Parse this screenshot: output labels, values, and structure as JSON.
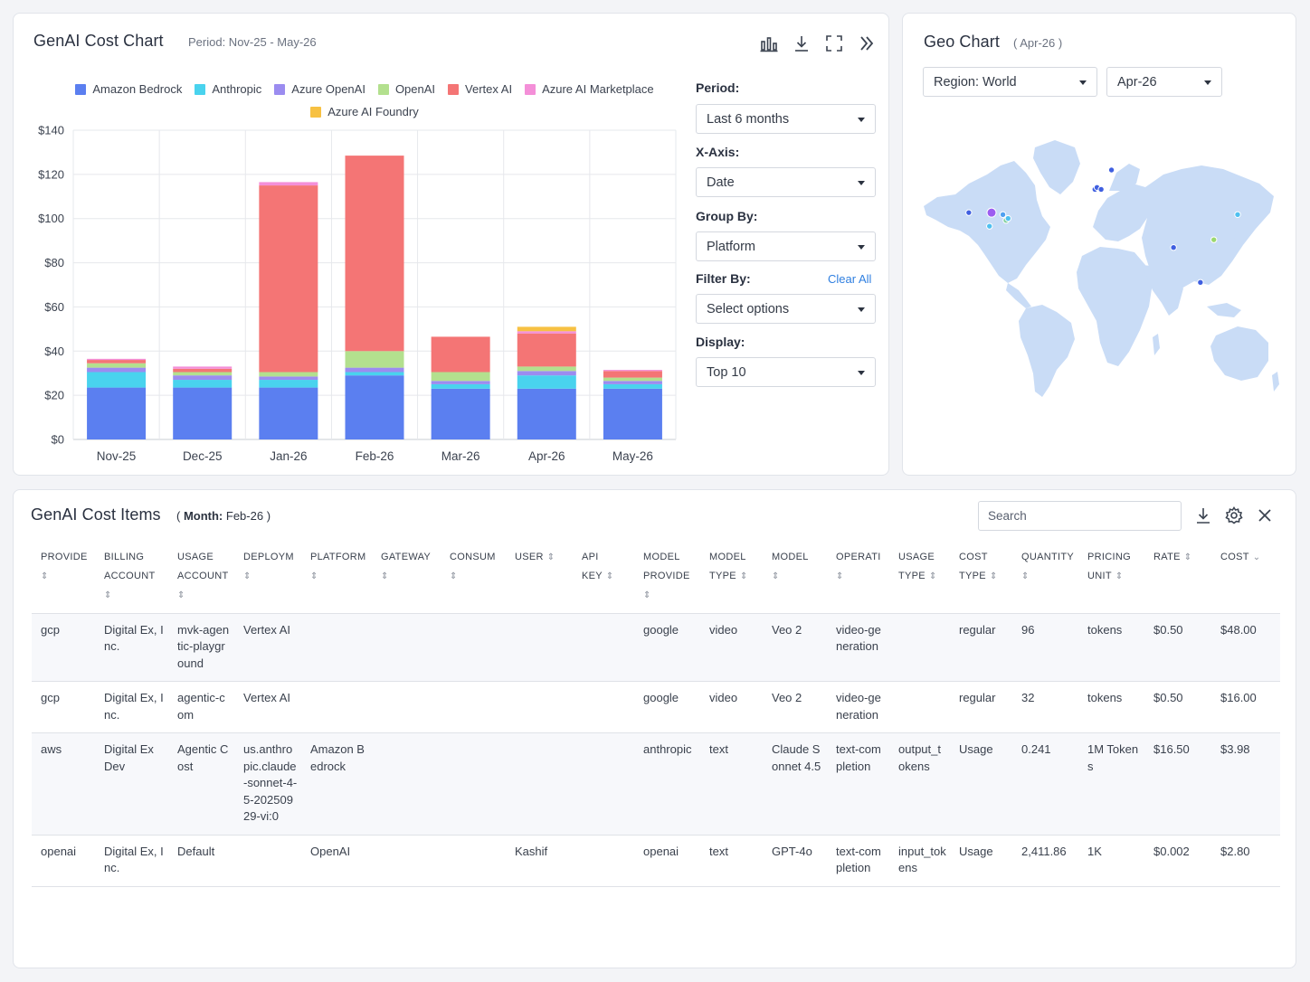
{
  "cost_chart": {
    "title": "GenAI Cost Chart",
    "period_text": "Period: Nov-25 - May-26",
    "toolbar": [
      "bar-chart-icon",
      "download-icon",
      "fullscreen-icon",
      "chevrons-right-icon"
    ]
  },
  "chart_data": {
    "type": "bar",
    "stacked": true,
    "categories": [
      "Nov-25",
      "Dec-25",
      "Jan-26",
      "Feb-26",
      "Mar-26",
      "Apr-26",
      "May-26"
    ],
    "y_ticks": [
      "$0",
      "$20",
      "$40",
      "$60",
      "$80",
      "$100",
      "$120",
      "$140"
    ],
    "ylim": [
      0,
      140
    ],
    "grid": true,
    "legend_position": "top-center",
    "series": [
      {
        "name": "Amazon Bedrock",
        "color": "#5b7ff0",
        "values": [
          23.5,
          23.5,
          23.5,
          29,
          23,
          23,
          23
        ]
      },
      {
        "name": "Anthropic",
        "color": "#49d3ee",
        "values": [
          7,
          3.5,
          3.5,
          1.5,
          2,
          6,
          2
        ]
      },
      {
        "name": "Azure OpenAI",
        "color": "#9b8cf0",
        "values": [
          2,
          2,
          1.5,
          2,
          1.5,
          2,
          1.5
        ]
      },
      {
        "name": "OpenAI",
        "color": "#b3e08e",
        "values": [
          2,
          1.5,
          2,
          7.5,
          4,
          2,
          1.5
        ]
      },
      {
        "name": "Vertex AI",
        "color": "#f47575",
        "values": [
          1.5,
          1.5,
          84.5,
          88.5,
          16,
          15,
          3
        ]
      },
      {
        "name": "Azure AI Marketplace",
        "color": "#f48fd8",
        "values": [
          0.5,
          1,
          1.5,
          0,
          0,
          1,
          0.5
        ]
      },
      {
        "name": "Azure AI Foundry",
        "color": "#f7c142",
        "values": [
          0,
          0,
          0,
          0,
          0,
          2,
          0
        ]
      }
    ]
  },
  "controls": {
    "period": {
      "label": "Period:",
      "value": "Last 6 months"
    },
    "x_axis": {
      "label": "X-Axis:",
      "value": "Date"
    },
    "group_by": {
      "label": "Group By:",
      "value": "Platform"
    },
    "filter_by": {
      "label": "Filter By:",
      "clear_label": "Clear All",
      "value": "Select options"
    },
    "display": {
      "label": "Display:",
      "value": "Top 10"
    }
  },
  "geo_chart": {
    "title": "Geo Chart",
    "subtitle": "( Apr-26 )",
    "region_value": "Region: World",
    "month_value": "Apr-26",
    "land_color": "#c9dcf6",
    "markers": [
      {
        "lon": -98,
        "lat": 37,
        "color": "#9c5cf0"
      },
      {
        "lon": -87,
        "lat": 36,
        "color": "#4fa0f0"
      },
      {
        "lon": -84,
        "lat": 33,
        "color": "#84d0a0"
      },
      {
        "lon": -82,
        "lat": 34,
        "color": "#4fc0f0"
      },
      {
        "lon": -120,
        "lat": 37,
        "color": "#3f5fe0"
      },
      {
        "lon": -100,
        "lat": 30,
        "color": "#4fc0f0"
      },
      {
        "lon": 18,
        "lat": 59,
        "color": "#3f5fe0"
      },
      {
        "lon": 2,
        "lat": 49,
        "color": "#3f5fe0"
      },
      {
        "lon": 4,
        "lat": 50,
        "color": "#3f5fe0"
      },
      {
        "lon": 8,
        "lat": 49,
        "color": "#3f5fe0"
      },
      {
        "lon": 78,
        "lat": 19,
        "color": "#3f5fe0"
      },
      {
        "lon": 140,
        "lat": 36,
        "color": "#4fc0f0"
      },
      {
        "lon": 117,
        "lat": 23,
        "color": "#9bd86e"
      },
      {
        "lon": 104,
        "lat": 1,
        "color": "#3f5fe0"
      }
    ]
  },
  "items": {
    "title": "GenAI Cost Items",
    "month_label": "Month:",
    "month_value": "Feb-26",
    "search_placeholder": "Search",
    "columns": [
      "PROVIDE",
      "BILLING ACCOUNT",
      "USAGE ACCOUNT",
      "DEPLOYM",
      "PLATFORM",
      "GATEWAY",
      "CONSUM",
      "USER",
      "API KEY",
      "MODEL PROVIDE",
      "MODEL TYPE",
      "MODEL",
      "OPERATI",
      "USAGE TYPE",
      "COST TYPE",
      "QUANTITY",
      "PRICING UNIT",
      "RATE",
      "COST"
    ],
    "rows": [
      [
        "gcp",
        "Digital Ex, Inc.",
        "mvk-agentic-playground",
        "Vertex AI",
        "",
        "",
        "",
        "",
        "",
        "google",
        "video",
        "Veo 2",
        "video-generation",
        "",
        "regular",
        "96",
        "tokens",
        "$0.50",
        "$48.00"
      ],
      [
        "gcp",
        "Digital Ex, Inc.",
        "agentic-com",
        "Vertex AI",
        "",
        "",
        "",
        "",
        "",
        "google",
        "video",
        "Veo 2",
        "video-generation",
        "",
        "regular",
        "32",
        "tokens",
        "$0.50",
        "$16.00"
      ],
      [
        "aws",
        "Digital Ex Dev",
        "Agentic Cost",
        "us.anthropic.claude-sonnet-4-5-20250929-vi:0",
        "Amazon Bedrock",
        "",
        "",
        "",
        "",
        "anthropic",
        "text",
        "Claude Sonnet 4.5",
        "text-completion",
        "output_tokens",
        "Usage",
        "0.241",
        "1M Tokens",
        "$16.50",
        "$3.98"
      ],
      [
        "openai",
        "Digital Ex, Inc.",
        "Default",
        "",
        "OpenAI",
        "",
        "",
        "Kashif",
        "",
        "openai",
        "text",
        "GPT-4o",
        "text-completion",
        "input_tokens",
        "Usage",
        "2,411.86",
        "1K",
        "$0.002",
        "$2.80"
      ]
    ]
  }
}
